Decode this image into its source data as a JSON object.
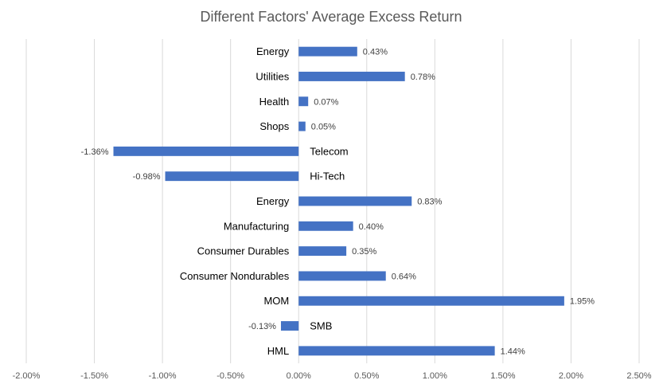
{
  "chart_data": {
    "type": "bar",
    "orientation": "horizontal",
    "title": "Different Factors' Average Excess Return",
    "xlabel": "",
    "ylabel": "",
    "categories": [
      "Energy",
      "Utilities",
      "Health",
      "Shops",
      "Telecom",
      "Hi-Tech",
      "Energy",
      "Manufacturing",
      "Consumer Durables",
      "Consumer Nondurables",
      "MOM",
      "SMB",
      "HML"
    ],
    "values": [
      0.43,
      0.78,
      0.07,
      0.05,
      -1.36,
      -0.98,
      0.83,
      0.4,
      0.35,
      0.64,
      1.95,
      -0.13,
      1.44
    ],
    "data_labels": [
      "0.43%",
      "0.78%",
      "0.07%",
      "0.05%",
      "-1.36%",
      "-0.98%",
      "0.83%",
      "0.40%",
      "0.35%",
      "0.64%",
      "1.95%",
      "-0.13%",
      "1.44%"
    ],
    "xlim": [
      -2.0,
      2.5
    ],
    "xticks": [
      -2.0,
      -1.5,
      -1.0,
      -0.5,
      0.0,
      0.5,
      1.0,
      1.5,
      2.0,
      2.5
    ],
    "xtick_labels": [
      "-2.00%",
      "-1.50%",
      "-1.00%",
      "-0.50%",
      "0.00%",
      "0.50%",
      "1.00%",
      "1.50%",
      "2.00%",
      "2.50%"
    ],
    "grid": true,
    "legend": "none",
    "bar_color": "#4472C4",
    "grid_color": "#D9D9D9"
  }
}
